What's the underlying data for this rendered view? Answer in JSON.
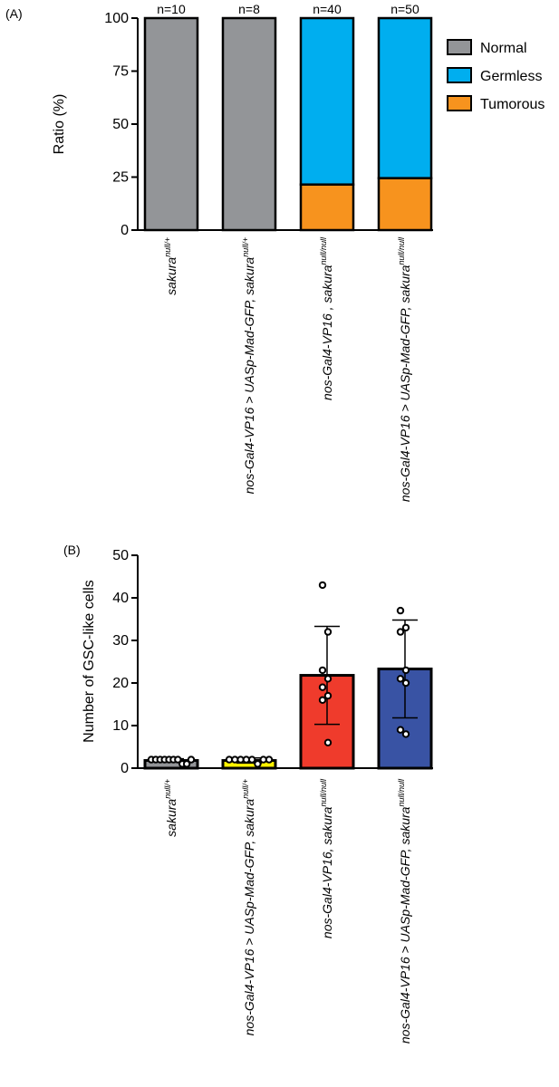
{
  "chart_data": [
    {
      "panel": "(A)",
      "type": "bar",
      "stacked": true,
      "ylabel": "Ratio (%)",
      "ylim": [
        0,
        100
      ],
      "yticks": [
        0,
        25,
        50,
        75,
        100
      ],
      "categories": [
        {
          "main": "sakura",
          "sup": "null/+"
        },
        {
          "main": "nos-Gal4-VP16 > UASp-Mad-GFP, sakura",
          "sup": "null/+"
        },
        {
          "main": "nos-Gal4-VP16 , sakura",
          "sup": "null/null"
        },
        {
          "main": "nos-Gal4-VP16 > UASp-Mad-GFP, sakura",
          "sup": "null/null"
        }
      ],
      "n_labels": [
        "n=10",
        "n=8",
        "n=40",
        "n=50"
      ],
      "series": [
        {
          "name": "Tumorous",
          "color": "#f7931e",
          "values": [
            0,
            0,
            21.5,
            24.5
          ]
        },
        {
          "name": "Germless",
          "color": "#00aeef",
          "values": [
            0,
            0,
            78.5,
            75.5
          ]
        },
        {
          "name": "Normal",
          "color": "#939598",
          "values": [
            100,
            100,
            0,
            0
          ]
        }
      ],
      "legend_order": [
        "Normal",
        "Germless",
        "Tumorous"
      ],
      "legend": "right"
    },
    {
      "panel": "(B)",
      "type": "bar",
      "ylabel": "Number of GSC-like cells",
      "ylim": [
        0,
        50
      ],
      "yticks": [
        0,
        10,
        20,
        30,
        40,
        50
      ],
      "categories": [
        {
          "main": "sakura",
          "sup": "null/+"
        },
        {
          "main": "nos-Gal4-VP16 > UASp-Mad-GFP, sakura",
          "sup": "null/+"
        },
        {
          "main": "nos-Gal4-VP16, sakura",
          "sup": "null/null"
        },
        {
          "main": "nos-Gal4-VP16 > UASp-Mad-GFP, sakura",
          "sup": "null/null"
        }
      ],
      "colors": [
        "#939598",
        "#fff200",
        "#ef3b2c",
        "#3953a4"
      ],
      "values": [
        1.8,
        1.8,
        21.8,
        23.3
      ],
      "sd": [
        0.4,
        0.6,
        11.5,
        11.5
      ],
      "points": [
        [
          2,
          2,
          2,
          2,
          2,
          2,
          2,
          1,
          1,
          2
        ],
        [
          2,
          2,
          2,
          2,
          2,
          1,
          2,
          2
        ],
        [
          43,
          32,
          23,
          21,
          19,
          17,
          16,
          6
        ],
        [
          37,
          33,
          32,
          23,
          21,
          20,
          9,
          8
        ]
      ]
    }
  ]
}
